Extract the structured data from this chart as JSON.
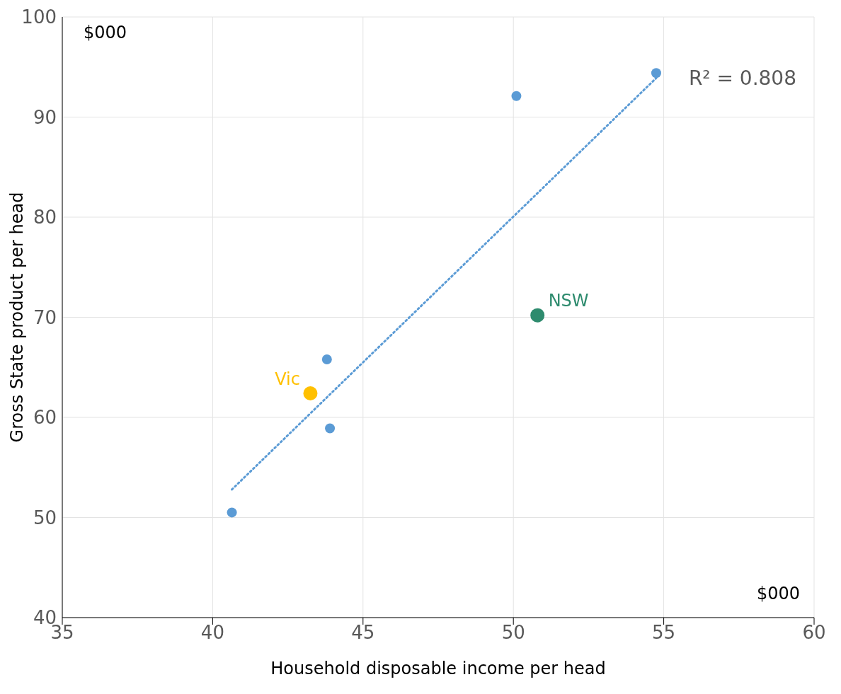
{
  "chart_data": {
    "type": "scatter",
    "xlabel": "Household disposable income per head",
    "ylabel": "Gross State product per head",
    "annotations": [
      "$000",
      "$000",
      "R² = 0.808"
    ],
    "xlim": [
      35,
      60
    ],
    "xticks": [
      35,
      40,
      45,
      50,
      55,
      60
    ],
    "ylim": [
      40,
      100
    ],
    "yticks": [
      40,
      50,
      60,
      70,
      80,
      90,
      100
    ],
    "grid": true,
    "marker": "circle",
    "series": [
      {
        "type": "line",
        "color": "#5b9bd5",
        "x": [
          40.64,
          54.75
        ],
        "values": [
          52.8,
          93.9
        ],
        "line_style": "dotted",
        "marker": "none"
      },
      {
        "color": "#5b9bd5",
        "x": [
          40.64,
          43.8,
          43.9,
          50.1,
          54.75
        ],
        "values": [
          50.5,
          65.8,
          58.9,
          92.1,
          94.4
        ]
      },
      {
        "name": "Vic",
        "color": "#ffc000",
        "x": [
          43.25
        ],
        "values": [
          62.4
        ]
      },
      {
        "name": "NSW",
        "color": "#2e8b6e",
        "x": [
          50.8
        ],
        "values": [
          70.2
        ]
      }
    ]
  }
}
